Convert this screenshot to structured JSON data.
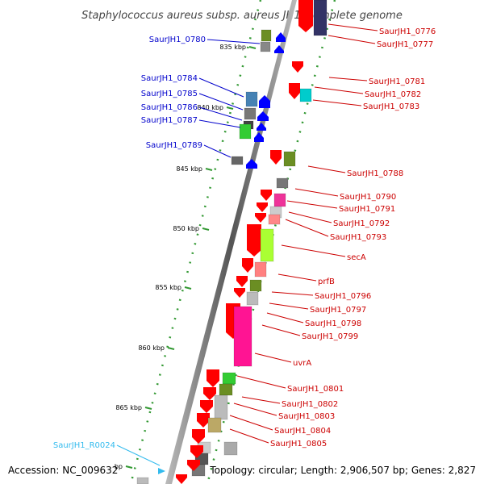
{
  "title": "Staphylococcus aureus subsp. aureus JH1, complete genome",
  "accession": "Accession: NC_009632",
  "topology": "Topology: circular; Length: 2,906,507 bp; Genes: 2,827",
  "colors": {
    "label_left": "#0000cc",
    "label_right": "#cc0000",
    "label_rna": "#33bbee",
    "backbone": "#888888",
    "ticks": "#339933",
    "forward_arrow": "#ff0000",
    "reverse_arrow": "#0000ff"
  },
  "ticks": [
    {
      "label": "835 kbp"
    },
    {
      "label": "840 kbp"
    },
    {
      "label": "845 kbp"
    },
    {
      "label": "850 kbp"
    },
    {
      "label": "855 kbp"
    },
    {
      "label": "860 kbp"
    },
    {
      "label": "865 kbp"
    },
    {
      "label": "bp"
    }
  ],
  "left_labels": [
    {
      "text": "SaurJH1_0780"
    },
    {
      "text": "SaurJH1_0784"
    },
    {
      "text": "SaurJH1_0785"
    },
    {
      "text": "SaurJH1_0786"
    },
    {
      "text": "SaurJH1_0787"
    },
    {
      "text": "SaurJH1_0789"
    },
    {
      "text": "SaurJH1_R0024"
    }
  ],
  "right_labels": [
    {
      "text": "SaurJH1_0776"
    },
    {
      "text": "SaurJH1_0777"
    },
    {
      "text": "SaurJH1_0781"
    },
    {
      "text": "SaurJH1_0782"
    },
    {
      "text": "SaurJH1_0783"
    },
    {
      "text": "SaurJH1_0788"
    },
    {
      "text": "SaurJH1_0790"
    },
    {
      "text": "SaurJH1_0791"
    },
    {
      "text": "SaurJH1_0792"
    },
    {
      "text": "SaurJH1_0793"
    },
    {
      "text": "secA"
    },
    {
      "text": "prfB"
    },
    {
      "text": "SaurJH1_0796"
    },
    {
      "text": "SaurJH1_0797"
    },
    {
      "text": "SaurJH1_0798"
    },
    {
      "text": "SaurJH1_0799"
    },
    {
      "text": "uvrA"
    },
    {
      "text": "SaurJH1_0801"
    },
    {
      "text": "SaurJH1_0802"
    },
    {
      "text": "SaurJH1_0803"
    },
    {
      "text": "SaurJH1_0804"
    },
    {
      "text": "SaurJH1_0805"
    }
  ]
}
